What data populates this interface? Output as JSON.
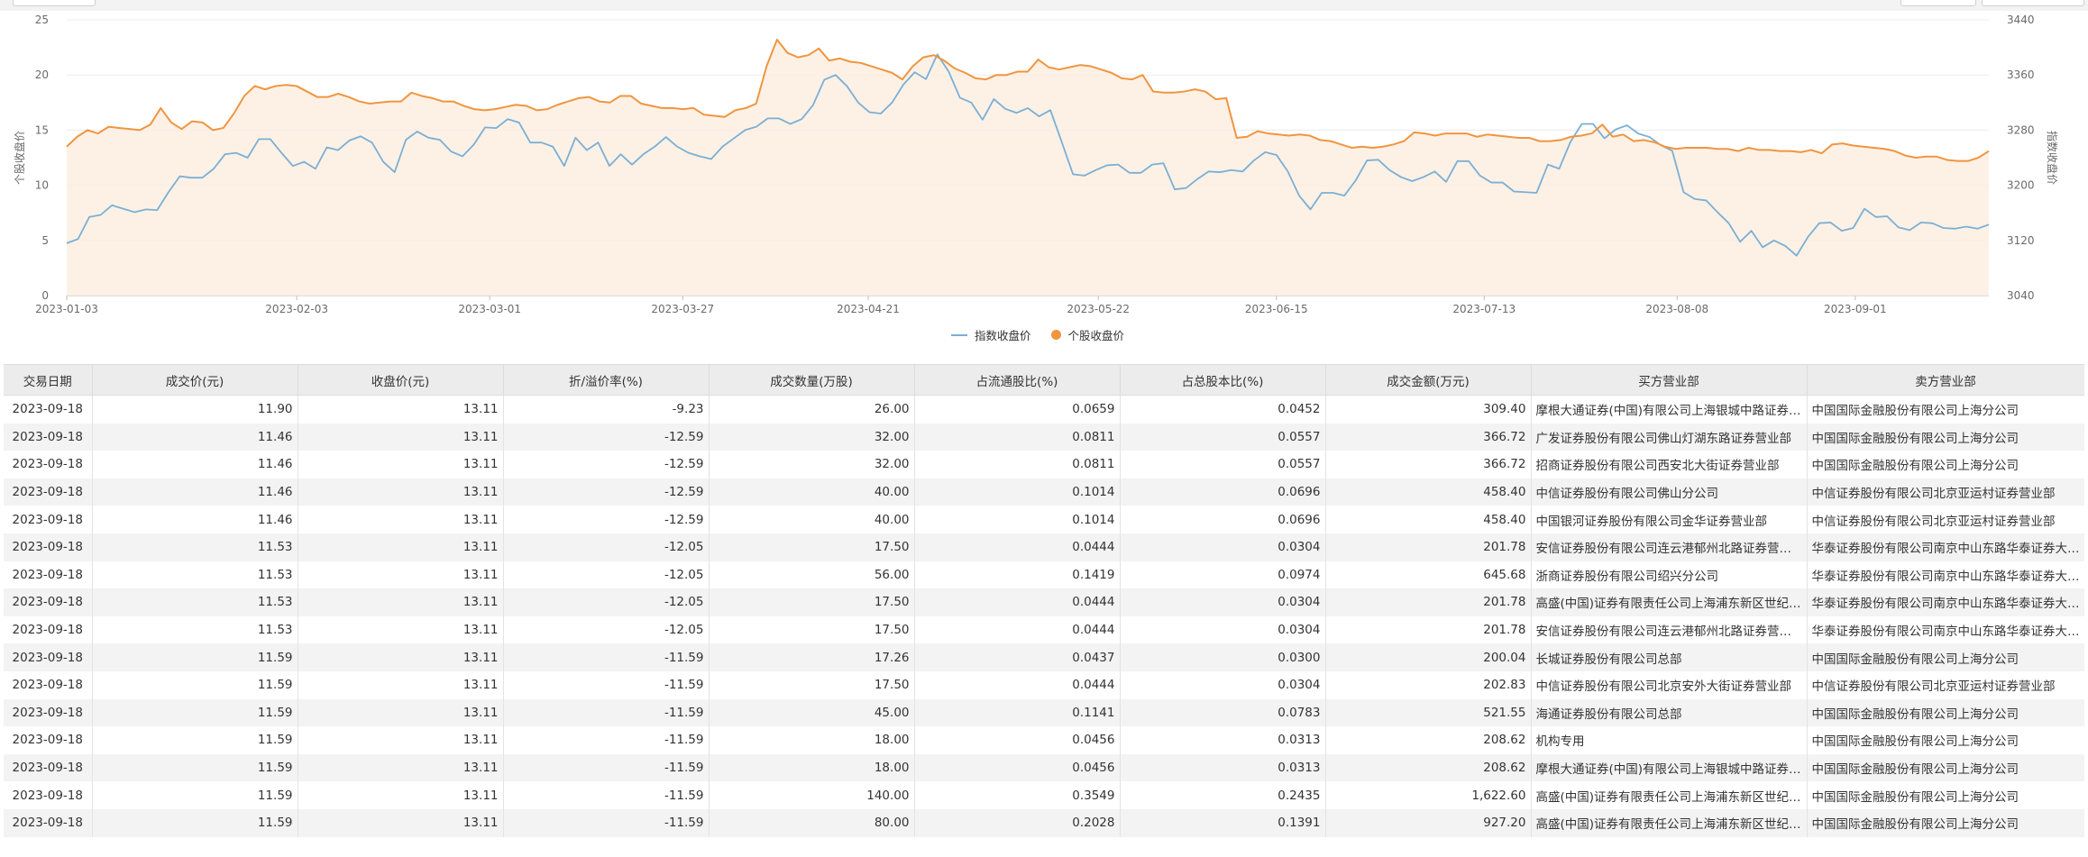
{
  "chart_data": {
    "type": "line",
    "y_left": {
      "label": "个股收盘价",
      "min": 0,
      "max": 25,
      "ticks": [
        0,
        5,
        10,
        15,
        20,
        25
      ]
    },
    "y_right": {
      "label": "指数收盘价",
      "min": 3040,
      "max": 3440,
      "ticks": [
        3040,
        3120,
        3200,
        3280,
        3360,
        3440
      ]
    },
    "x_start": "2023-01-03",
    "x_ticks": [
      "2023-01-03",
      "2023-02-03",
      "2023-03-01",
      "2023-03-27",
      "2023-04-21",
      "2023-05-22",
      "2023-06-15",
      "2023-07-13",
      "2023-08-08",
      "2023-09-01"
    ],
    "legend_position": "bottom-center",
    "grid": true,
    "colors": {
      "index": "#7bafd4",
      "stock": "#f0953f",
      "stock_fill": "#fdeee2"
    },
    "series": [
      {
        "name": "指数收盘价",
        "axis": "right",
        "values": [
          3116,
          3122,
          3154,
          3157,
          3171,
          3166,
          3161,
          3165,
          3164,
          3190,
          3213,
          3211,
          3211,
          3224,
          3245,
          3247,
          3240,
          3267,
          3267,
          3247,
          3228,
          3234,
          3224,
          3255,
          3251,
          3265,
          3271,
          3262,
          3234,
          3219,
          3266,
          3278,
          3269,
          3266,
          3249,
          3242,
          3259,
          3284,
          3283,
          3296,
          3291,
          3262,
          3262,
          3256,
          3228,
          3269,
          3251,
          3262,
          3228,
          3245,
          3230,
          3245,
          3256,
          3270,
          3256,
          3247,
          3242,
          3238,
          3256,
          3268,
          3280,
          3285,
          3297,
          3297,
          3289,
          3296,
          3316,
          3353,
          3360,
          3344,
          3320,
          3306,
          3304,
          3320,
          3346,
          3364,
          3354,
          3390,
          3365,
          3327,
          3320,
          3295,
          3325,
          3311,
          3305,
          3312,
          3300,
          3309,
          3263,
          3216,
          3214,
          3222,
          3229,
          3230,
          3218,
          3218,
          3230,
          3232,
          3194,
          3196,
          3209,
          3220,
          3219,
          3222,
          3220,
          3236,
          3248,
          3244,
          3220,
          3185,
          3165,
          3189,
          3189,
          3185,
          3207,
          3236,
          3237,
          3222,
          3212,
          3206,
          3212,
          3220,
          3205,
          3235,
          3235,
          3214,
          3204,
          3204,
          3191,
          3190,
          3189,
          3230,
          3224,
          3263,
          3289,
          3289,
          3268,
          3281,
          3287,
          3275,
          3270,
          3258,
          3250,
          3190,
          3180,
          3178,
          3161,
          3145,
          3118,
          3134,
          3110,
          3120,
          3112,
          3098,
          3125,
          3145,
          3146,
          3134,
          3138,
          3166,
          3154,
          3155,
          3139,
          3135,
          3146,
          3145,
          3138,
          3137,
          3140,
          3137,
          3143
        ]
      },
      {
        "name": "个股收盘价",
        "axis": "left",
        "values": [
          13.5,
          14.4,
          15.0,
          14.7,
          15.3,
          15.2,
          15.1,
          15.0,
          15.5,
          17.0,
          15.7,
          15.1,
          15.8,
          15.7,
          15.0,
          15.2,
          16.5,
          18.1,
          19.0,
          18.7,
          19.0,
          19.1,
          19.0,
          18.5,
          18.0,
          18.0,
          18.3,
          18.0,
          17.6,
          17.4,
          17.5,
          17.6,
          17.6,
          18.4,
          18.1,
          17.9,
          17.6,
          17.6,
          17.2,
          16.9,
          16.8,
          16.9,
          17.1,
          17.3,
          17.2,
          16.8,
          16.9,
          17.3,
          17.6,
          17.9,
          18.0,
          17.6,
          17.5,
          18.1,
          18.1,
          17.4,
          17.2,
          17.0,
          17.0,
          16.9,
          17.0,
          16.4,
          16.3,
          16.2,
          16.8,
          17.0,
          17.4,
          20.8,
          23.2,
          22.0,
          21.6,
          21.8,
          22.4,
          21.3,
          21.5,
          21.2,
          21.1,
          20.8,
          20.5,
          20.2,
          19.6,
          20.8,
          21.6,
          21.8,
          21.3,
          20.6,
          20.2,
          19.7,
          19.6,
          20.0,
          20.0,
          20.3,
          20.3,
          21.4,
          20.7,
          20.5,
          20.7,
          20.9,
          20.8,
          20.5,
          20.2,
          19.7,
          19.6,
          20.0,
          18.5,
          18.4,
          18.4,
          18.5,
          18.7,
          18.5,
          17.8,
          17.9,
          14.3,
          14.4,
          14.9,
          14.7,
          14.6,
          14.5,
          14.6,
          14.5,
          14.1,
          14.0,
          13.7,
          13.4,
          13.5,
          13.4,
          13.5,
          13.7,
          14.0,
          14.8,
          14.7,
          14.5,
          14.7,
          14.7,
          14.7,
          14.4,
          14.6,
          14.5,
          14.4,
          14.3,
          14.3,
          14.0,
          14.0,
          14.1,
          14.4,
          14.5,
          14.7,
          15.5,
          14.4,
          14.6,
          14.0,
          14.1,
          13.9,
          13.5,
          13.3,
          13.4,
          13.4,
          13.4,
          13.3,
          13.3,
          13.1,
          13.4,
          13.2,
          13.2,
          13.1,
          13.1,
          13.0,
          13.2,
          12.9,
          13.7,
          13.8,
          13.6,
          13.5,
          13.4,
          13.3,
          13.1,
          12.7,
          12.5,
          12.6,
          12.6,
          12.3,
          12.2,
          12.2,
          12.5,
          13.1
        ]
      }
    ]
  },
  "table": {
    "headers": [
      "交易日期",
      "成交价(元)",
      "收盘价(元)",
      "折/溢价率(%)",
      "成交数量(万股)",
      "占流通股比(%)",
      "占总股本比(%)",
      "成交金额(万元)",
      "买方营业部",
      "卖方营业部"
    ],
    "rows": [
      [
        "2023-09-18",
        "11.90",
        "13.11",
        "-9.23",
        "26.00",
        "0.0659",
        "0.0452",
        "309.40",
        "摩根大通证券(中国)有限公司上海银城中路证券营业部",
        "中国国际金融股份有限公司上海分公司"
      ],
      [
        "2023-09-18",
        "11.46",
        "13.11",
        "-12.59",
        "32.00",
        "0.0811",
        "0.0557",
        "366.72",
        "广发证券股份有限公司佛山灯湖东路证券营业部",
        "中国国际金融股份有限公司上海分公司"
      ],
      [
        "2023-09-18",
        "11.46",
        "13.11",
        "-12.59",
        "32.00",
        "0.0811",
        "0.0557",
        "366.72",
        "招商证券股份有限公司西安北大街证券营业部",
        "中国国际金融股份有限公司上海分公司"
      ],
      [
        "2023-09-18",
        "11.46",
        "13.11",
        "-12.59",
        "40.00",
        "0.1014",
        "0.0696",
        "458.40",
        "中信证券股份有限公司佛山分公司",
        "中信证券股份有限公司北京亚运村证券营业部"
      ],
      [
        "2023-09-18",
        "11.46",
        "13.11",
        "-12.59",
        "40.00",
        "0.1014",
        "0.0696",
        "458.40",
        "中国银河证券股份有限公司金华证券营业部",
        "中信证券股份有限公司北京亚运村证券营业部"
      ],
      [
        "2023-09-18",
        "11.53",
        "13.11",
        "-12.05",
        "17.50",
        "0.0444",
        "0.0304",
        "201.78",
        "安信证券股份有限公司连云港郁州北路证券营业部",
        "华泰证券股份有限公司南京中山东路华泰证券大厦营业部"
      ],
      [
        "2023-09-18",
        "11.53",
        "13.11",
        "-12.05",
        "56.00",
        "0.1419",
        "0.0974",
        "645.68",
        "浙商证券股份有限公司绍兴分公司",
        "华泰证券股份有限公司南京中山东路华泰证券大厦营业部"
      ],
      [
        "2023-09-18",
        "11.53",
        "13.11",
        "-12.05",
        "17.50",
        "0.0444",
        "0.0304",
        "201.78",
        "高盛(中国)证券有限责任公司上海浦东新区世纪大道证券营业部",
        "华泰证券股份有限公司南京中山东路华泰证券大厦营业部"
      ],
      [
        "2023-09-18",
        "11.53",
        "13.11",
        "-12.05",
        "17.50",
        "0.0444",
        "0.0304",
        "201.78",
        "安信证券股份有限公司连云港郁州北路证券营业部",
        "华泰证券股份有限公司南京中山东路华泰证券大厦营业部"
      ],
      [
        "2023-09-18",
        "11.59",
        "13.11",
        "-11.59",
        "17.26",
        "0.0437",
        "0.0300",
        "200.04",
        "长城证券股份有限公司总部",
        "中国国际金融股份有限公司上海分公司"
      ],
      [
        "2023-09-18",
        "11.59",
        "13.11",
        "-11.59",
        "17.50",
        "0.0444",
        "0.0304",
        "202.83",
        "中信证券股份有限公司北京安外大街证券营业部",
        "中信证券股份有限公司北京亚运村证券营业部"
      ],
      [
        "2023-09-18",
        "11.59",
        "13.11",
        "-11.59",
        "45.00",
        "0.1141",
        "0.0783",
        "521.55",
        "海通证券股份有限公司总部",
        "中国国际金融股份有限公司上海分公司"
      ],
      [
        "2023-09-18",
        "11.59",
        "13.11",
        "-11.59",
        "18.00",
        "0.0456",
        "0.0313",
        "208.62",
        "机构专用",
        "中国国际金融股份有限公司上海分公司"
      ],
      [
        "2023-09-18",
        "11.59",
        "13.11",
        "-11.59",
        "18.00",
        "0.0456",
        "0.0313",
        "208.62",
        "摩根大通证券(中国)有限公司上海银城中路证券营业部",
        "中国国际金融股份有限公司上海分公司"
      ],
      [
        "2023-09-18",
        "11.59",
        "13.11",
        "-11.59",
        "140.00",
        "0.3549",
        "0.2435",
        "1,622.60",
        "高盛(中国)证券有限责任公司上海浦东新区世纪大道证券营业部",
        "中国国际金融股份有限公司上海分公司"
      ],
      [
        "2023-09-18",
        "11.59",
        "13.11",
        "-11.59",
        "80.00",
        "0.2028",
        "0.1391",
        "927.20",
        "高盛(中国)证券有限责任公司上海浦东新区世纪大道证券营业部",
        "中国国际金融股份有限公司上海分公司"
      ]
    ]
  }
}
